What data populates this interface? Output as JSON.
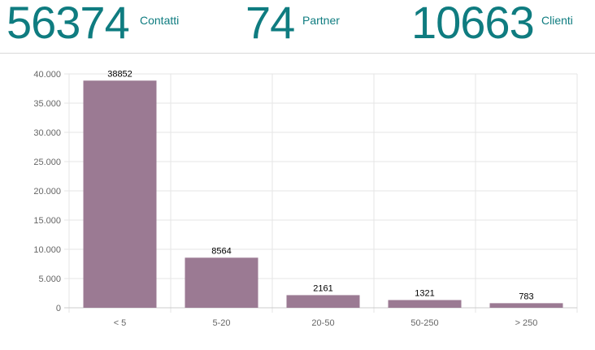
{
  "stats": [
    {
      "value": "56374",
      "label": "Contatti"
    },
    {
      "value": "74",
      "label": "Partner"
    },
    {
      "value": "10663",
      "label": "Clienti"
    }
  ],
  "colors": {
    "accent": "#0f7c80",
    "bar": "#9b7a93",
    "grid": "#e5e5e5"
  },
  "chart_data": {
    "type": "bar",
    "categories": [
      "< 5",
      "5-20",
      "20-50",
      "50-250",
      "> 250"
    ],
    "values": [
      38852,
      8564,
      2161,
      1321,
      783
    ],
    "data_labels": [
      "38852",
      "8564",
      "2161",
      "1321",
      "783"
    ],
    "y_ticks": [
      "0",
      "5.000",
      "10.000",
      "15.000",
      "20.000",
      "25.000",
      "30.000",
      "35.000",
      "40.000"
    ],
    "ylim": [
      0,
      40000
    ],
    "grid": true,
    "title": "",
    "xlabel": "",
    "ylabel": ""
  }
}
